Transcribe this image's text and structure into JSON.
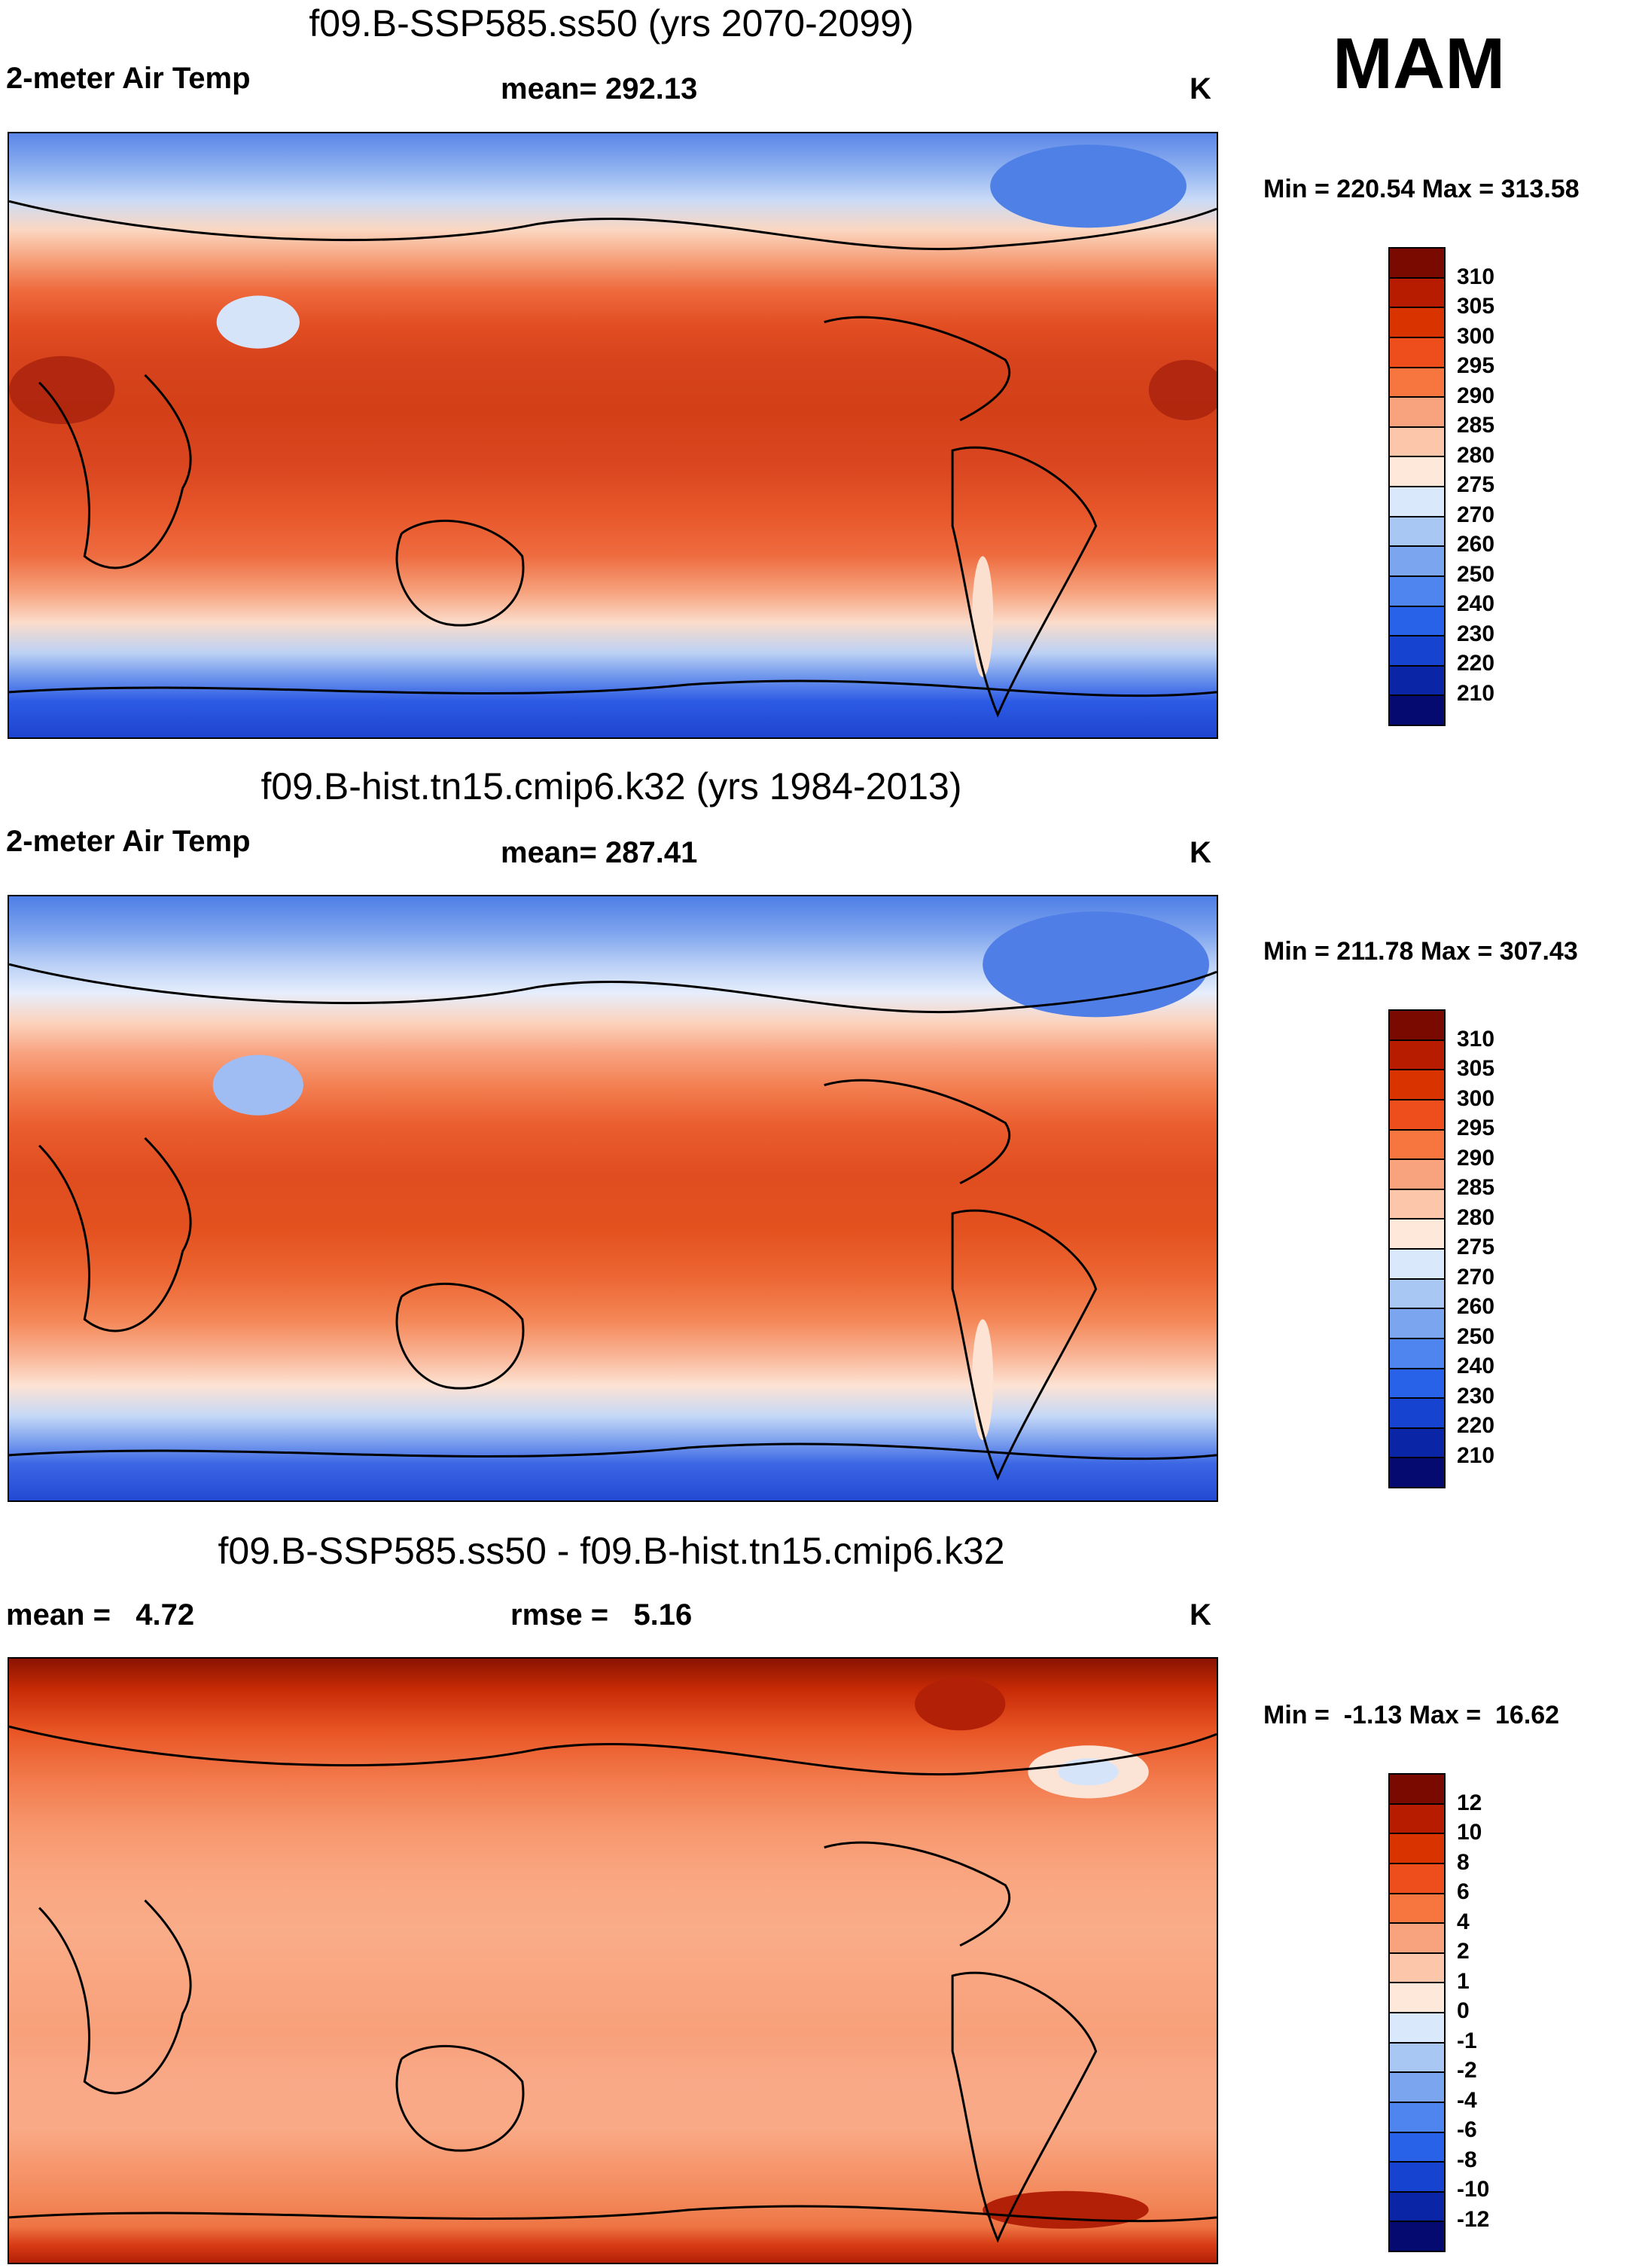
{
  "season": "MAM",
  "units": "K",
  "panels": [
    {
      "title": "f09.B-SSP585.ss50 (yrs 2070-2099)",
      "left_label": "2-meter Air Temp",
      "center_label": "mean= 292.13",
      "right_label": "K",
      "minmax": "Min = 220.54 Max = 313.58",
      "colorbar": {
        "levels": [
          "310",
          "305",
          "300",
          "295",
          "290",
          "285",
          "280",
          "275",
          "270",
          "260",
          "250",
          "240",
          "230",
          "220",
          "210"
        ],
        "colors": [
          "#7a0a00",
          "#b81c00",
          "#d93400",
          "#ee4d1c",
          "#f7763f",
          "#f9a27e",
          "#fcc6aa",
          "#fde8d9",
          "#d9e8fb",
          "#a9c7f3",
          "#7ba5ef",
          "#4f85ee",
          "#2862e8",
          "#1743d1",
          "#0a26a6",
          "#050a70"
        ]
      },
      "map": {
        "bands": [
          "#5a86e8",
          "#90b2f0",
          "#c9dbf8",
          "#fbd7c1",
          "#f69f78",
          "#ee6a3e",
          "#e24d22",
          "#d6431c",
          "#d34018",
          "#d94620",
          "#e8572a",
          "#ee6c40",
          "#f6a37e",
          "#fbdccb",
          "#bcd1f4",
          "#6d95ec",
          "#2d5be5",
          "#1d44cf"
        ],
        "stops": [
          0,
          6,
          11,
          16,
          21,
          26,
          32,
          38,
          46,
          55,
          63,
          70,
          76,
          81,
          86,
          90,
          94,
          100
        ]
      }
    },
    {
      "title": "f09.B-hist.tn15.cmip6.k32 (yrs 1984-2013)",
      "left_label": "2-meter Air Temp",
      "center_label": "mean= 287.41",
      "right_label": "K",
      "minmax": "Min = 211.78 Max = 307.43",
      "colorbar": {
        "levels": [
          "310",
          "305",
          "300",
          "295",
          "290",
          "285",
          "280",
          "275",
          "270",
          "260",
          "250",
          "240",
          "230",
          "220",
          "210"
        ],
        "colors": [
          "#7a0a00",
          "#b81c00",
          "#d93400",
          "#ee4d1c",
          "#f7763f",
          "#f9a27e",
          "#fcc6aa",
          "#fde8d9",
          "#d9e8fb",
          "#a9c7f3",
          "#7ba5ef",
          "#4f85ee",
          "#2862e8",
          "#1743d1",
          "#0a26a6",
          "#050a70"
        ]
      },
      "map": {
        "bands": [
          "#4f7fe6",
          "#7ea4ee",
          "#b6cdf5",
          "#e6eefc",
          "#fcd2bc",
          "#f8a27f",
          "#f27c4e",
          "#ea5d2e",
          "#e04d20",
          "#e3511f",
          "#ec6633",
          "#f48656",
          "#f9b495",
          "#fde3d4",
          "#c5d8f7",
          "#7fa3ee",
          "#3b66e4",
          "#2349d3"
        ],
        "stops": [
          0,
          6,
          11,
          16,
          21,
          26,
          32,
          38,
          46,
          55,
          63,
          70,
          76,
          81,
          86,
          90,
          94,
          100
        ]
      }
    },
    {
      "title": "f09.B-SSP585.ss50 - f09.B-hist.tn15.cmip6.k32",
      "left_label": "mean =   4.72",
      "center_label": "rmse =   5.16",
      "right_label": "K",
      "minmax": "Min =  -1.13 Max =  16.62",
      "colorbar": {
        "levels": [
          "12",
          "10",
          "8",
          "6",
          "4",
          "2",
          "1",
          "0",
          "-1",
          "-2",
          "-4",
          "-6",
          "-8",
          "-10",
          "-12"
        ],
        "colors": [
          "#7a0a00",
          "#b81c00",
          "#d93400",
          "#ee4d1c",
          "#f7763f",
          "#f9a27e",
          "#fcc6aa",
          "#fde8d9",
          "#d9e8fb",
          "#a9c7f3",
          "#7ba5ef",
          "#4f85ee",
          "#2862e8",
          "#1743d1",
          "#0a26a6",
          "#050a70"
        ]
      },
      "map": {
        "bands": [
          "#8a1300",
          "#c62a06",
          "#e95524",
          "#f27a4c",
          "#f7976e",
          "#f9a680",
          "#f9ac88",
          "#f9a680",
          "#f8a07a",
          "#f9a987",
          "#f9a985",
          "#f6946a",
          "#f28758",
          "#ee7444",
          "#d83c14",
          "#b32008"
        ],
        "stops": [
          0,
          5,
          12,
          20,
          28,
          36,
          45,
          54,
          62,
          70,
          78,
          85,
          90,
          94,
          97,
          100
        ]
      }
    }
  ]
}
